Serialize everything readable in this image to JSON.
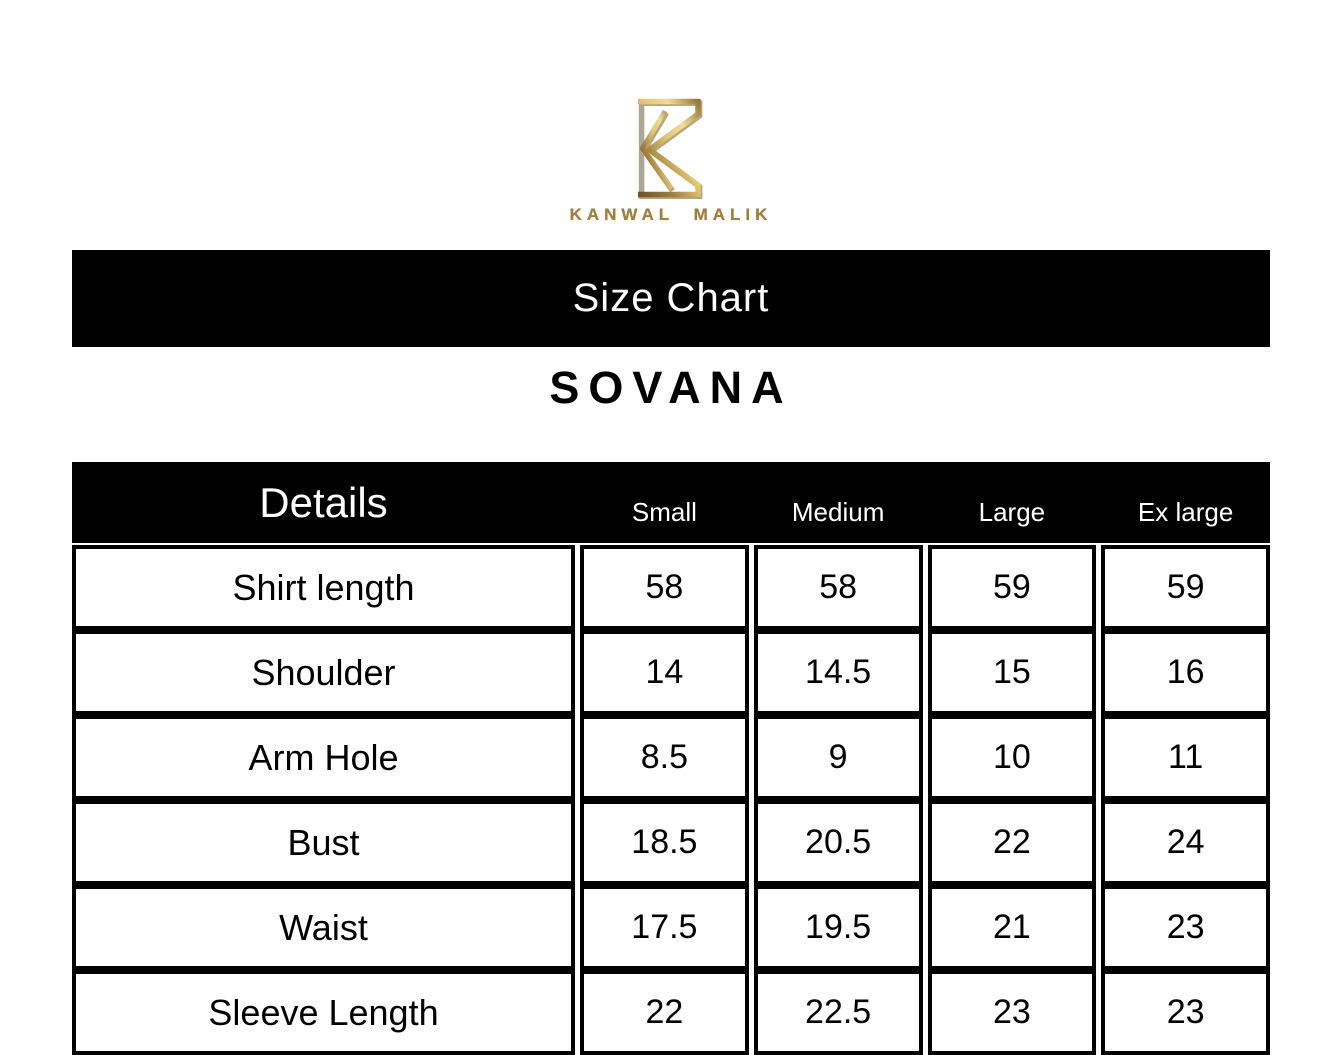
{
  "brand": {
    "name": "KANWAL MALIK",
    "logo_icon": "kz-monogram",
    "gold_color": "#a2803a",
    "gold_light": "#eed27c",
    "gold_dark": "#6f541f"
  },
  "banner": {
    "title": "Size Chart"
  },
  "product": {
    "name": "SOVANA"
  },
  "chart_data": {
    "type": "table",
    "title": "Size Chart",
    "subtitle": "SOVANA",
    "columns": [
      "Details",
      "Small",
      "Medium",
      "Large",
      "Ex large"
    ],
    "rows": [
      {
        "label": "Shirt length",
        "values": [
          "58",
          "58",
          "59",
          "59"
        ]
      },
      {
        "label": "Shoulder",
        "values": [
          "14",
          "14.5",
          "15",
          "16"
        ]
      },
      {
        "label": "Arm Hole",
        "values": [
          "8.5",
          "9",
          "10",
          "11"
        ]
      },
      {
        "label": "Bust",
        "values": [
          "18.5",
          "20.5",
          "22",
          "24"
        ]
      },
      {
        "label": "Waist",
        "values": [
          "17.5",
          "19.5",
          "21",
          "23"
        ]
      },
      {
        "label": "Sleeve Length",
        "values": [
          "22",
          "22.5",
          "23",
          "23"
        ]
      }
    ]
  },
  "colors": {
    "background": "#ffffff",
    "table_border": "#000000",
    "banner_bg": "#000000",
    "banner_text": "#ffffff"
  }
}
